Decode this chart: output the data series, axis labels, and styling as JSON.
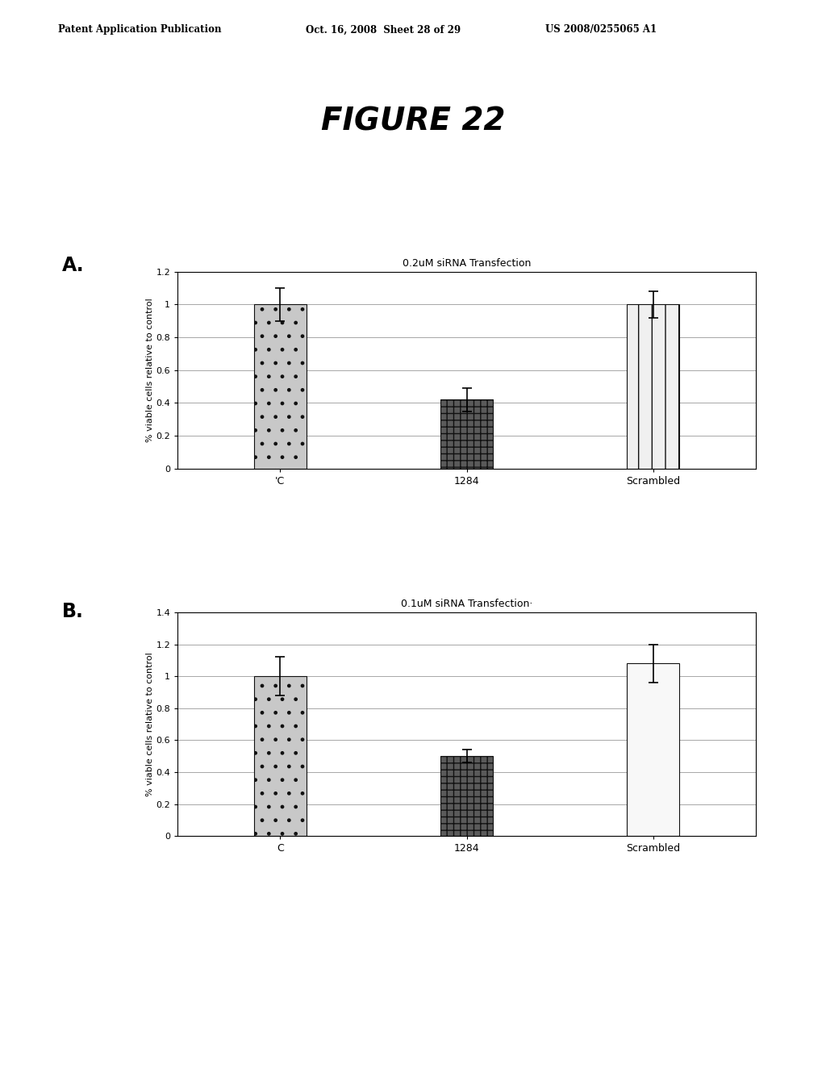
{
  "header_left": "Patent Application Publication",
  "header_mid": "Oct. 16, 2008  Sheet 28 of 29",
  "header_right": "US 2008/0255065 A1",
  "figure_title": "FIGURE 22",
  "panel_A_label": "A.",
  "panel_B_label": "B.",
  "panel_A_title": "0.2uM siRNA Transfection",
  "panel_B_title": "0.1uM siRNA Transfection·",
  "categories_A": [
    "'C",
    "1284",
    "Scrambled"
  ],
  "categories_B": [
    "C",
    "1284",
    "Scrambled"
  ],
  "panel_A_values": [
    1.0,
    0.42,
    1.0
  ],
  "panel_A_errors": [
    0.1,
    0.07,
    0.08
  ],
  "panel_A_ylim": [
    0,
    1.2
  ],
  "panel_A_yticks": [
    0,
    0.2,
    0.4,
    0.6,
    0.8,
    1.0,
    1.2
  ],
  "panel_B_values": [
    1.0,
    0.5,
    1.08
  ],
  "panel_B_errors": [
    0.12,
    0.04,
    0.12
  ],
  "panel_B_ylim": [
    0,
    1.4
  ],
  "panel_B_yticks": [
    0,
    0.2,
    0.4,
    0.6,
    0.8,
    1.0,
    1.2,
    1.4
  ],
  "ylabel": "% viable cells relative to control",
  "background_color": "#ffffff",
  "grid_color": "#999999",
  "edge_color": "#000000",
  "fig_width": 10.24,
  "fig_height": 13.2,
  "dpi": 100
}
